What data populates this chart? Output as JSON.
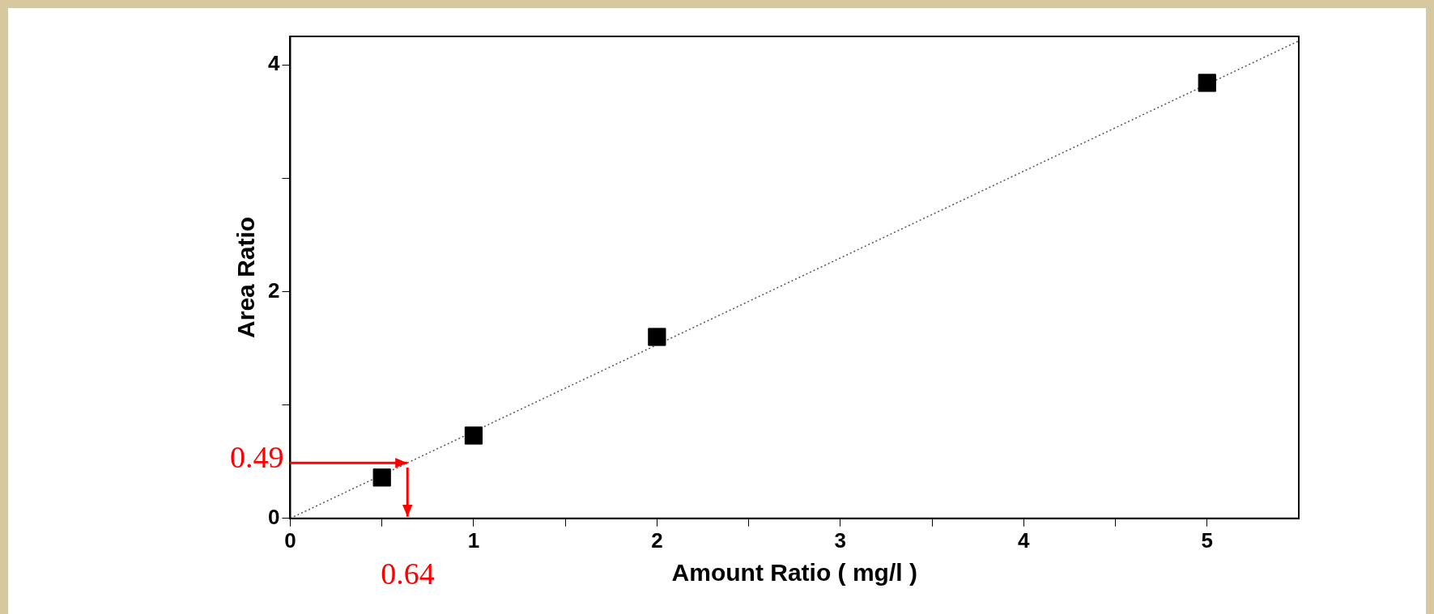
{
  "chart_data": {
    "type": "scatter",
    "xlabel": "Amount Ratio ( mg/l )",
    "ylabel": "Area Ratio",
    "xlim": [
      0,
      5.5
    ],
    "ylim": [
      0,
      4.25
    ],
    "xticks": [
      0,
      {
        "value": 0.5,
        "label": null
      },
      1,
      {
        "value": 1.5,
        "label": null
      },
      2,
      {
        "value": 2.5,
        "label": null
      },
      3,
      {
        "value": 3.5,
        "label": null
      },
      4,
      {
        "value": 4.5,
        "label": null
      },
      5
    ],
    "yticks": [
      0,
      {
        "value": 1,
        "label": null
      },
      2,
      {
        "value": 3,
        "label": null
      },
      4
    ],
    "grid": false,
    "legend": false,
    "marker": "square",
    "series": [
      {
        "color": "#000000",
        "x": [
          0.5,
          1,
          2,
          5
        ],
        "values": [
          0.36,
          0.73,
          1.6,
          3.84
        ]
      },
      {
        "type": "line",
        "color": "#555555",
        "line_style": "dotted",
        "marker": "none",
        "x": [
          0,
          5.5
        ],
        "values": [
          0,
          4.21
        ]
      }
    ],
    "ref_lines": [
      {
        "axis": "y",
        "value": 0.49,
        "label": "0.49",
        "color": "#ff0000"
      },
      {
        "axis": "x",
        "value": 0.64,
        "label": "0.64",
        "color": "#ff0000"
      }
    ]
  }
}
